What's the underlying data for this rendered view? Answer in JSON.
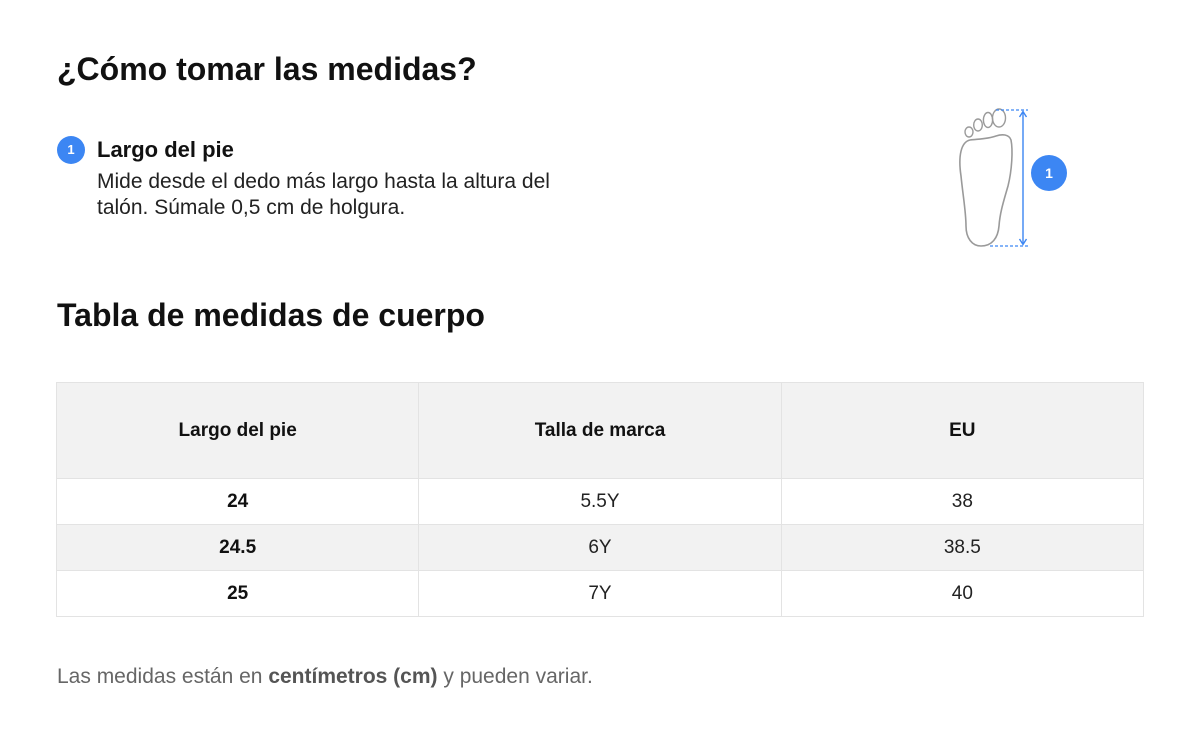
{
  "header": {
    "title": "¿Cómo tomar las medidas?"
  },
  "step": {
    "number": "1",
    "title": "Largo del pie",
    "description": "Mide desde el dedo más largo hasta la altura del talón. Súmale 0,5 cm de holgura."
  },
  "figure": {
    "icon": "foot-length-icon",
    "badge": "1",
    "accent_color": "#3c86f3"
  },
  "table": {
    "title": "Tabla de medidas de cuerpo",
    "headers": [
      "Largo del pie",
      "Talla de marca",
      "EU"
    ],
    "rows": [
      [
        "24",
        "5.5Y",
        "38"
      ],
      [
        "24.5",
        "6Y",
        "38.5"
      ],
      [
        "25",
        "7Y",
        "40"
      ]
    ]
  },
  "note": {
    "prefix": "Las medidas están en ",
    "emphasis": "centímetros (cm)",
    "suffix": " y pueden variar."
  }
}
